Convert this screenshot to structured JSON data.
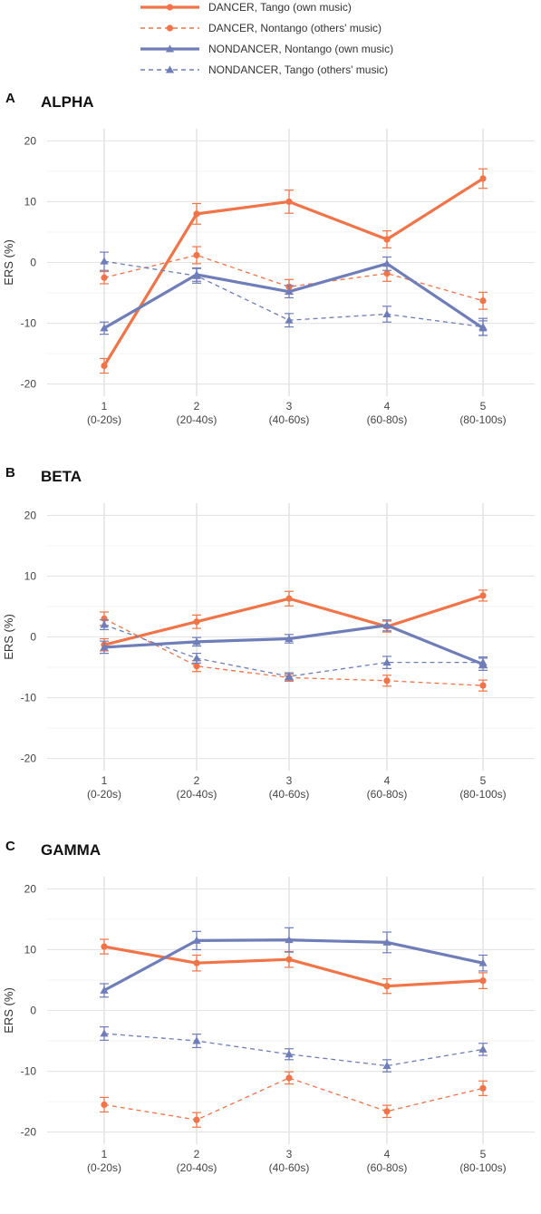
{
  "legend": [
    {
      "label": "DANCER, Tango (own music)",
      "color": "#f07447",
      "dashed": false,
      "marker": "circle",
      "bold": true
    },
    {
      "label": "DANCER, Nontango (others' music)",
      "color": "#f07447",
      "dashed": true,
      "marker": "circle",
      "bold": false
    },
    {
      "label": "NONDANCER, Nontango (own music)",
      "color": "#6f7db8",
      "dashed": false,
      "marker": "triangle",
      "bold": true
    },
    {
      "label": "NONDANCER, Tango (others' music)",
      "color": "#6f7db8",
      "dashed": true,
      "marker": "triangle",
      "bold": false
    }
  ],
  "chart_data": [
    {
      "type": "line",
      "panel": "A",
      "title": "ALPHA",
      "xlabel": "",
      "ylabel": "ERS (%)",
      "ylim": [
        -22,
        22
      ],
      "yticks": [
        -20,
        -10,
        0,
        10,
        20
      ],
      "categories": [
        "1\n(0-20s)",
        "2\n(20-40s)",
        "3\n(40-60s)",
        "4\n(60-80s)",
        "5\n(80-100s)"
      ],
      "grid": true,
      "legend_position": "top",
      "series": [
        {
          "name": "DANCER, Tango (own music)",
          "values": [
            -17,
            8,
            10,
            3.8,
            13.8
          ],
          "error": [
            1.2,
            1.7,
            1.9,
            1.4,
            1.6
          ]
        },
        {
          "name": "DANCER, Nontango (others' music)",
          "values": [
            -2.5,
            1.2,
            -4,
            -1.8,
            -6.3
          ],
          "error": [
            1.0,
            1.4,
            1.2,
            1.3,
            1.4
          ]
        },
        {
          "name": "NONDANCER, Nontango (own music)",
          "values": [
            -10.8,
            -2,
            -4.8,
            -0.2,
            -10.8
          ],
          "error": [
            1.0,
            1.1,
            1.0,
            1.1,
            1.2
          ]
        },
        {
          "name": "NONDANCER, Tango (others' music)",
          "values": [
            0.2,
            -2.2,
            -9.5,
            -8.5,
            -10.6
          ],
          "error": [
            1.5,
            1.2,
            1.1,
            1.3,
            1.4
          ]
        }
      ]
    },
    {
      "type": "line",
      "panel": "B",
      "title": "BETA",
      "xlabel": "",
      "ylabel": "ERS (%)",
      "ylim": [
        -22,
        22
      ],
      "yticks": [
        -20,
        -10,
        0,
        10,
        20
      ],
      "categories": [
        "1\n(0-20s)",
        "2\n(20-40s)",
        "3\n(40-60s)",
        "4\n(60-80s)",
        "5\n(80-100s)"
      ],
      "grid": true,
      "series": [
        {
          "name": "DANCER, Tango (own music)",
          "values": [
            -1.3,
            2.5,
            6.3,
            1.7,
            6.8
          ],
          "error": [
            1.0,
            1.1,
            1.2,
            0.9,
            0.9
          ]
        },
        {
          "name": "DANCER, Nontango (others' music)",
          "values": [
            3,
            -4.8,
            -6.7,
            -7.2,
            -8
          ],
          "error": [
            1.1,
            0.9,
            0.6,
            0.9,
            0.9
          ]
        },
        {
          "name": "NONDANCER, Nontango (own music)",
          "values": [
            -1.7,
            -0.8,
            -0.3,
            1.9,
            -4.5
          ],
          "error": [
            1.0,
            0.7,
            0.7,
            0.9,
            1.0
          ]
        },
        {
          "name": "NONDANCER, Tango (others' music)",
          "values": [
            2,
            -3.5,
            -6.5,
            -4.2,
            -4.2
          ],
          "error": [
            0.8,
            0.8,
            0.6,
            1.0,
            0.9
          ]
        }
      ]
    },
    {
      "type": "line",
      "panel": "C",
      "title": "GAMMA",
      "xlabel": "",
      "ylabel": "ERS (%)",
      "ylim": [
        -22,
        22
      ],
      "yticks": [
        -20,
        -10,
        0,
        10,
        20
      ],
      "categories": [
        "1\n(0-20s)",
        "2\n(20-40s)",
        "3\n(40-60s)",
        "4\n(60-80s)",
        "5\n(80-100s)"
      ],
      "grid": true,
      "series": [
        {
          "name": "DANCER, Tango (own music)",
          "values": [
            10.5,
            7.8,
            8.4,
            4,
            4.9
          ],
          "error": [
            1.2,
            1.3,
            1.3,
            1.2,
            1.3
          ]
        },
        {
          "name": "DANCER, Nontango (others' music)",
          "values": [
            -15.5,
            -18,
            -11.1,
            -16.6,
            -12.8
          ],
          "error": [
            1.2,
            1.2,
            1.0,
            1.0,
            1.2
          ]
        },
        {
          "name": "NONDANCER, Nontango (own music)",
          "values": [
            3.3,
            11.5,
            11.6,
            11.2,
            7.8
          ],
          "error": [
            1.1,
            1.5,
            2.0,
            1.7,
            1.3
          ]
        },
        {
          "name": "NONDANCER, Tango (others' music)",
          "values": [
            -3.8,
            -5,
            -7.2,
            -9.1,
            -6.4
          ],
          "error": [
            1.1,
            1.1,
            0.9,
            1.0,
            1.0
          ]
        }
      ]
    }
  ]
}
